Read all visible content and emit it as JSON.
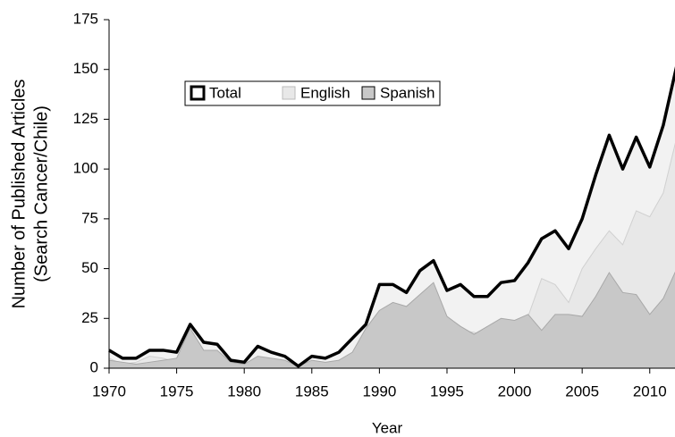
{
  "chart_data": {
    "type": "area",
    "x_label": "Year",
    "y_label": [
      "Number of Published Articles",
      "(Search Cancer/Chile)"
    ],
    "x": [
      1970,
      1971,
      1972,
      1973,
      1974,
      1975,
      1976,
      1977,
      1978,
      1979,
      1980,
      1981,
      1982,
      1983,
      1984,
      1985,
      1986,
      1987,
      1988,
      1989,
      1990,
      1991,
      1992,
      1993,
      1994,
      1995,
      1996,
      1997,
      1998,
      1999,
      2000,
      2001,
      2002,
      2003,
      2004,
      2005,
      2006,
      2007,
      2008,
      2009,
      2010,
      2011,
      2012
    ],
    "series": [
      {
        "name": "Total",
        "color": "#f2f2f2",
        "line": "#000000",
        "values": [
          9,
          5,
          5,
          9,
          9,
          8,
          22,
          13,
          12,
          4,
          3,
          11,
          8,
          6,
          1,
          6,
          5,
          8,
          15,
          22,
          42,
          42,
          38,
          49,
          54,
          39,
          42,
          36,
          36,
          43,
          44,
          53,
          65,
          69,
          60,
          75,
          97,
          117,
          100,
          116,
          101,
          122,
          152
        ]
      },
      {
        "name": "English",
        "color": "#e8e8e8",
        "line": "#d0d0d0",
        "values": [
          5,
          2,
          3,
          6,
          5,
          3,
          2,
          4,
          3,
          1,
          1,
          5,
          3,
          2,
          0,
          2,
          2,
          4,
          7,
          2,
          13,
          9,
          7,
          5,
          10,
          13,
          19,
          18,
          16,
          18,
          21,
          26,
          45,
          42,
          33,
          50,
          60,
          69,
          62,
          79,
          76,
          88,
          116
        ]
      },
      {
        "name": "Spanish",
        "color": "#c8c8c8",
        "line": "#a8a8a8",
        "values": [
          4,
          3,
          2,
          3,
          4,
          5,
          20,
          9,
          9,
          3,
          2,
          6,
          5,
          4,
          1,
          4,
          3,
          4,
          8,
          20,
          29,
          33,
          31,
          37,
          43,
          26,
          21,
          17,
          21,
          25,
          24,
          27,
          19,
          27,
          27,
          26,
          36,
          48,
          38,
          37,
          27,
          35,
          50
        ]
      }
    ],
    "xlim": [
      1970,
      2012
    ],
    "xticks": [
      1970,
      1975,
      1980,
      1985,
      1990,
      1995,
      2000,
      2005,
      2010
    ],
    "ylim": [
      0,
      175
    ],
    "yticks": [
      0,
      25,
      50,
      75,
      100,
      125,
      150,
      175
    ],
    "grid": false,
    "legend": "upper left"
  }
}
